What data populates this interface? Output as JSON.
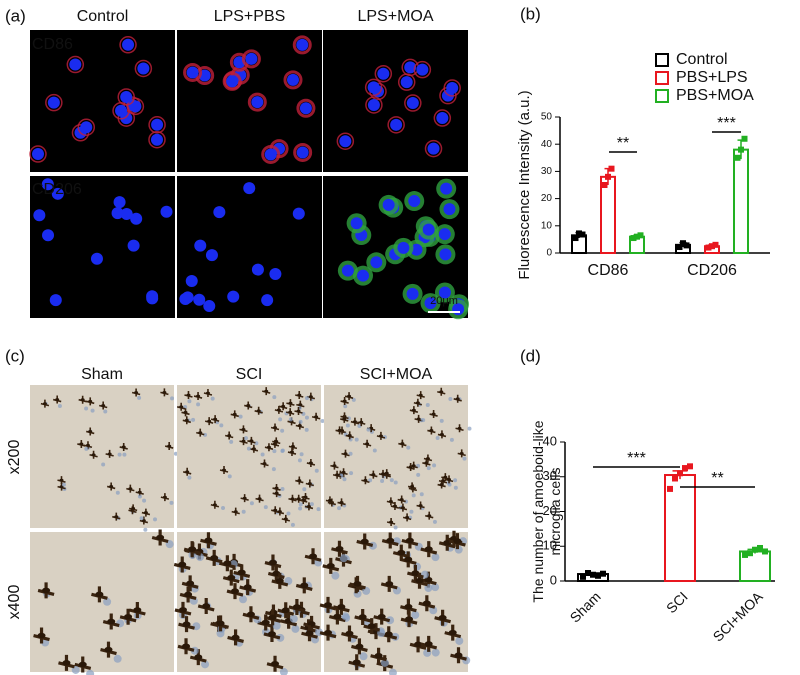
{
  "panel_a": {
    "label": "(a)",
    "columns": [
      "Control",
      "LPS+PBS",
      "LPS+MOA"
    ],
    "rows": [
      "CD86",
      "CD206"
    ],
    "scale_bar": "20μm"
  },
  "panel_c": {
    "label": "(c)",
    "columns": [
      "Sham",
      "SCI",
      "SCI+MOA"
    ],
    "rows": [
      "x200",
      "x400"
    ]
  },
  "chart_data": [
    {
      "type": "bar",
      "panel_label": "(b)",
      "ylabel": "Fluorescence Intensity (a.u.)",
      "categories": [
        "CD86",
        "CD206"
      ],
      "series": [
        {
          "name": "Control",
          "color": "#000000",
          "values": [
            6.5,
            3
          ],
          "errors": [
            1,
            0.8
          ],
          "points": [
            [
              5.5,
              7.2,
              6.8
            ],
            [
              2.2,
              3.6,
              2.8
            ]
          ]
        },
        {
          "name": "PBS+LPS",
          "color": "#e8171f",
          "values": [
            28,
            2.5
          ],
          "errors": [
            3,
            0.6
          ],
          "points": [
            [
              25,
              28,
              31
            ],
            [
              2,
              2.5,
              3
            ]
          ]
        },
        {
          "name": "PBS+MOA",
          "color": "#22b022",
          "values": [
            6,
            38
          ],
          "errors": [
            0.6,
            3.5
          ],
          "points": [
            [
              5.5,
              6,
              6.5
            ],
            [
              35,
              38,
              42
            ]
          ]
        }
      ],
      "ylim": [
        0,
        50
      ],
      "yticks": [
        0,
        10,
        20,
        30,
        40,
        50
      ],
      "annotations": [
        "**",
        "***"
      ]
    },
    {
      "type": "bar",
      "panel_label": "(d)",
      "ylabel": [
        "The number of amoeboid-like",
        "microglia cells"
      ],
      "categories": [
        "Sham",
        "SCI",
        "SCI+MOA"
      ],
      "values": [
        2,
        30.5,
        8.5
      ],
      "errors": [
        0.3,
        1.2,
        0.6
      ],
      "colors": [
        "#000000",
        "#e8171f",
        "#22b022"
      ],
      "points": [
        [
          1.2,
          2.3,
          1.8,
          1.5,
          2.1
        ],
        [
          26.5,
          29.5,
          31,
          32.5,
          33
        ],
        [
          7.5,
          8,
          9,
          9.5,
          8.5
        ]
      ],
      "ylim": [
        0,
        40
      ],
      "yticks": [
        0,
        10,
        20,
        30,
        40
      ],
      "annotations": [
        "***",
        "**"
      ]
    }
  ]
}
